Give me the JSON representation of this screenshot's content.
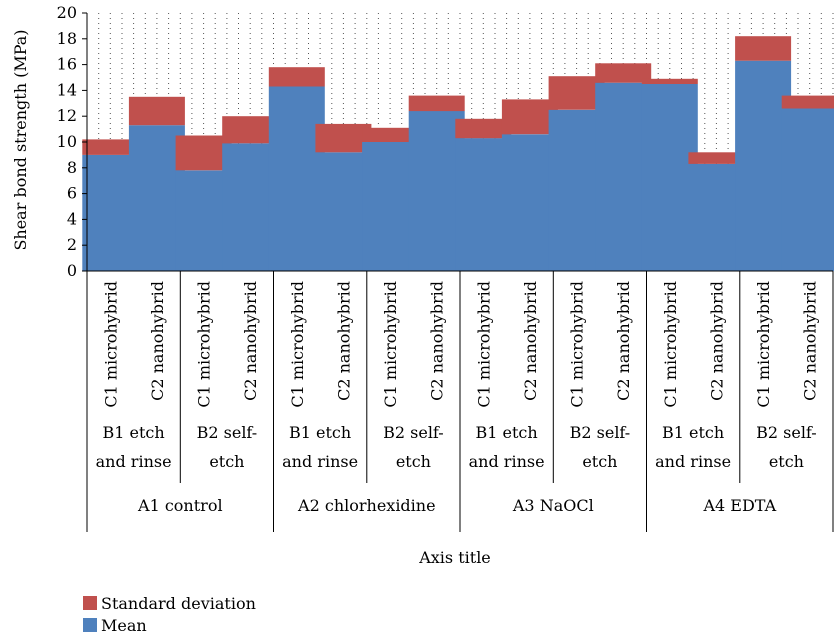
{
  "chart_data": {
    "type": "bar",
    "stacked": true,
    "ylabel": "Shear bond strength (MPa)",
    "xlabel": "Axis title",
    "ylim": [
      0,
      20
    ],
    "yticks": [
      0,
      2,
      4,
      6,
      8,
      10,
      12,
      14,
      16,
      18,
      20
    ],
    "grid": "dotted-vertical",
    "legend_position": "bottom-left",
    "groups": [
      {
        "label": "A1 control",
        "subgroups": [
          {
            "label_lines": [
              "B1 etch",
              "and rinse"
            ],
            "categories": [
              "C1 microhybrid",
              "C2 nanohybrid"
            ]
          },
          {
            "label_lines": [
              "B2 self-",
              "etch"
            ],
            "categories": [
              "C1 microhybrid",
              "C2 nanohybrid"
            ]
          }
        ]
      },
      {
        "label": "A2 chlorhexidine",
        "subgroups": [
          {
            "label_lines": [
              "B1 etch",
              "and rinse"
            ],
            "categories": [
              "C1 microhybrid",
              "C2 nanohybrid"
            ]
          },
          {
            "label_lines": [
              "B2 self-",
              "etch"
            ],
            "categories": [
              "C1 microhybrid",
              "C2 nanohybrid"
            ]
          }
        ]
      },
      {
        "label": "A3 NaOCl",
        "subgroups": [
          {
            "label_lines": [
              "B1 etch",
              "and rinse"
            ],
            "categories": [
              "C1 microhybrid",
              "C2 nanohybrid"
            ]
          },
          {
            "label_lines": [
              "B2 self-",
              "etch"
            ],
            "categories": [
              "C1 microhybrid",
              "C2 nanohybrid"
            ]
          }
        ]
      },
      {
        "label": "A4 EDTA",
        "subgroups": [
          {
            "label_lines": [
              "B1 etch",
              "and rinse"
            ],
            "categories": [
              "C1 microhybrid",
              "C2 nanohybrid"
            ]
          },
          {
            "label_lines": [
              "B2 self-",
              "etch"
            ],
            "categories": [
              "C1 microhybrid",
              "C2 nanohybrid"
            ]
          }
        ]
      }
    ],
    "series": [
      {
        "name": "Mean",
        "color": "#4f81bd",
        "values": [
          9.0,
          11.3,
          7.8,
          9.9,
          14.3,
          9.2,
          10.0,
          12.4,
          10.3,
          10.6,
          12.5,
          14.6,
          14.5,
          8.3,
          16.3,
          12.6
        ]
      },
      {
        "name": "Standard deviation",
        "color": "#c0504d",
        "values": [
          1.2,
          2.2,
          2.7,
          2.1,
          1.5,
          2.2,
          1.1,
          1.2,
          1.5,
          2.7,
          2.6,
          1.5,
          0.4,
          0.9,
          1.9,
          1.0
        ]
      }
    ]
  }
}
